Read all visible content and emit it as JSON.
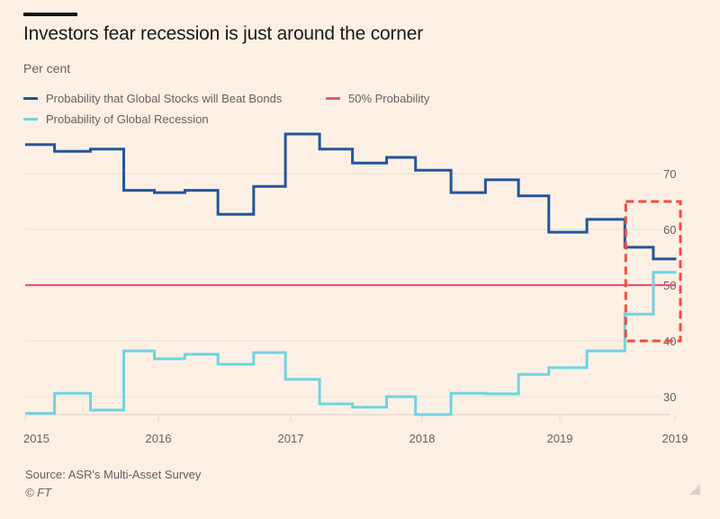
{
  "header": {
    "title": "Investors fear recession is just around the corner",
    "subtitle": "Per cent"
  },
  "legend": {
    "stocks": "Probability that Global Stocks will Beat Bonds",
    "fifty": "50% Probability",
    "recession": "Probability of Global Recession"
  },
  "footer": {
    "source": "Source: ASR's Multi-Asset Survey",
    "copyright": "© FT"
  },
  "colors": {
    "background": "#fcf0e5",
    "stocks": "#23559c",
    "recession": "#6fd3e0",
    "fifty": "#e8537a",
    "highlight": "#f24c3d",
    "grid": "#eadfd5",
    "axis_text": "#66605c"
  },
  "chart_data": {
    "type": "line",
    "step": true,
    "title": "Investors fear recession is just around the corner",
    "ylabel": "Per cent",
    "xlabel": "",
    "ylim": [
      26.8,
      80
    ],
    "xlim": [
      2015.0,
      2019.85
    ],
    "yticks": [
      30,
      40,
      50,
      60,
      70
    ],
    "y_axis_side": "right",
    "xticks": [
      {
        "value": 2015.0,
        "label": "2015"
      },
      {
        "value": 2016.0,
        "label": "2016"
      },
      {
        "value": 2017.0,
        "label": "2017"
      },
      {
        "value": 2018.0,
        "label": "2018"
      },
      {
        "value": 2019.0,
        "label": "2019"
      },
      {
        "value": 2019.85,
        "label": "2019"
      }
    ],
    "grid": "horizontal",
    "legend_position": "top-left",
    "x": [
      2015.0,
      2015.22,
      2015.49,
      2015.74,
      2015.97,
      2016.2,
      2016.45,
      2016.72,
      2016.96,
      2017.22,
      2017.47,
      2017.73,
      2017.95,
      2018.21,
      2018.46,
      2018.7,
      2018.92,
      2019.2,
      2019.48,
      2019.69
    ],
    "x_end": 2019.86,
    "series": [
      {
        "name": "Probability that Global Stocks will Beat Bonds",
        "key": "stocks",
        "values": [
          75.2,
          74.0,
          74.4,
          67.0,
          66.6,
          67.0,
          62.7,
          67.7,
          77.1,
          74.4,
          71.9,
          72.9,
          70.6,
          66.6,
          68.9,
          66.0,
          59.5,
          61.8,
          56.8,
          54.7
        ]
      },
      {
        "name": "Probability of Global Recession",
        "key": "recession",
        "values": [
          27.0,
          30.6,
          27.6,
          38.2,
          36.8,
          37.6,
          35.8,
          37.9,
          33.1,
          28.7,
          28.1,
          30.0,
          26.8,
          30.6,
          30.5,
          34.0,
          35.2,
          38.2,
          44.8,
          52.3
        ]
      },
      {
        "name": "50% Probability",
        "key": "fifty",
        "constant": 50
      }
    ],
    "annotations": [
      {
        "type": "dashed-rectangle",
        "x_range": [
          2019.48,
          2019.88
        ],
        "y_range": [
          40,
          65
        ],
        "meaning": "recent-period highlight"
      }
    ]
  }
}
